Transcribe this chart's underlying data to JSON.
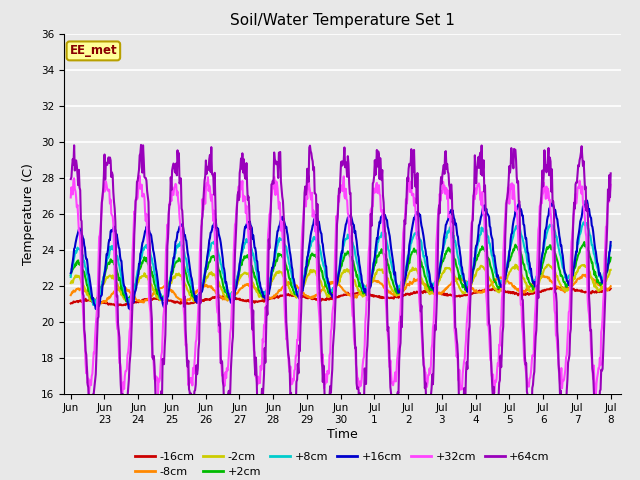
{
  "title": "Soil/Water Temperature Set 1",
  "xlabel": "Time",
  "ylabel": "Temperature (C)",
  "ylim": [
    16,
    36
  ],
  "annotation_text": "EE_met",
  "annotation_bg": "#ffff99",
  "annotation_border": "#b8a000",
  "series_keys": [
    "-16cm",
    "-8cm",
    "-2cm",
    "+2cm",
    "+8cm",
    "+16cm",
    "+32cm",
    "+64cm"
  ],
  "series_colors": [
    "#cc0000",
    "#ff8800",
    "#cccc00",
    "#00bb00",
    "#00cccc",
    "#0000cc",
    "#ff44ff",
    "#9900bb"
  ],
  "series_lw": [
    1.5,
    1.5,
    1.5,
    1.5,
    1.5,
    1.5,
    1.5,
    1.5
  ],
  "yticks": [
    16,
    18,
    20,
    22,
    24,
    26,
    28,
    30,
    32,
    34,
    36
  ],
  "xtick_labels_line1": [
    "Jun",
    "23Jun",
    "24Jun",
    "25Jun",
    "26Jun",
    "27Jun",
    "28Jun",
    "29Jun",
    "30",
    "Jul 1",
    "Jul 2",
    "Jul 3",
    "Jul 4",
    "Jul 5",
    "Jul 6",
    "Jul 7",
    "Jul 8"
  ],
  "fig_bg": "#d8d8d8",
  "ax_bg": "#e8e8e8"
}
